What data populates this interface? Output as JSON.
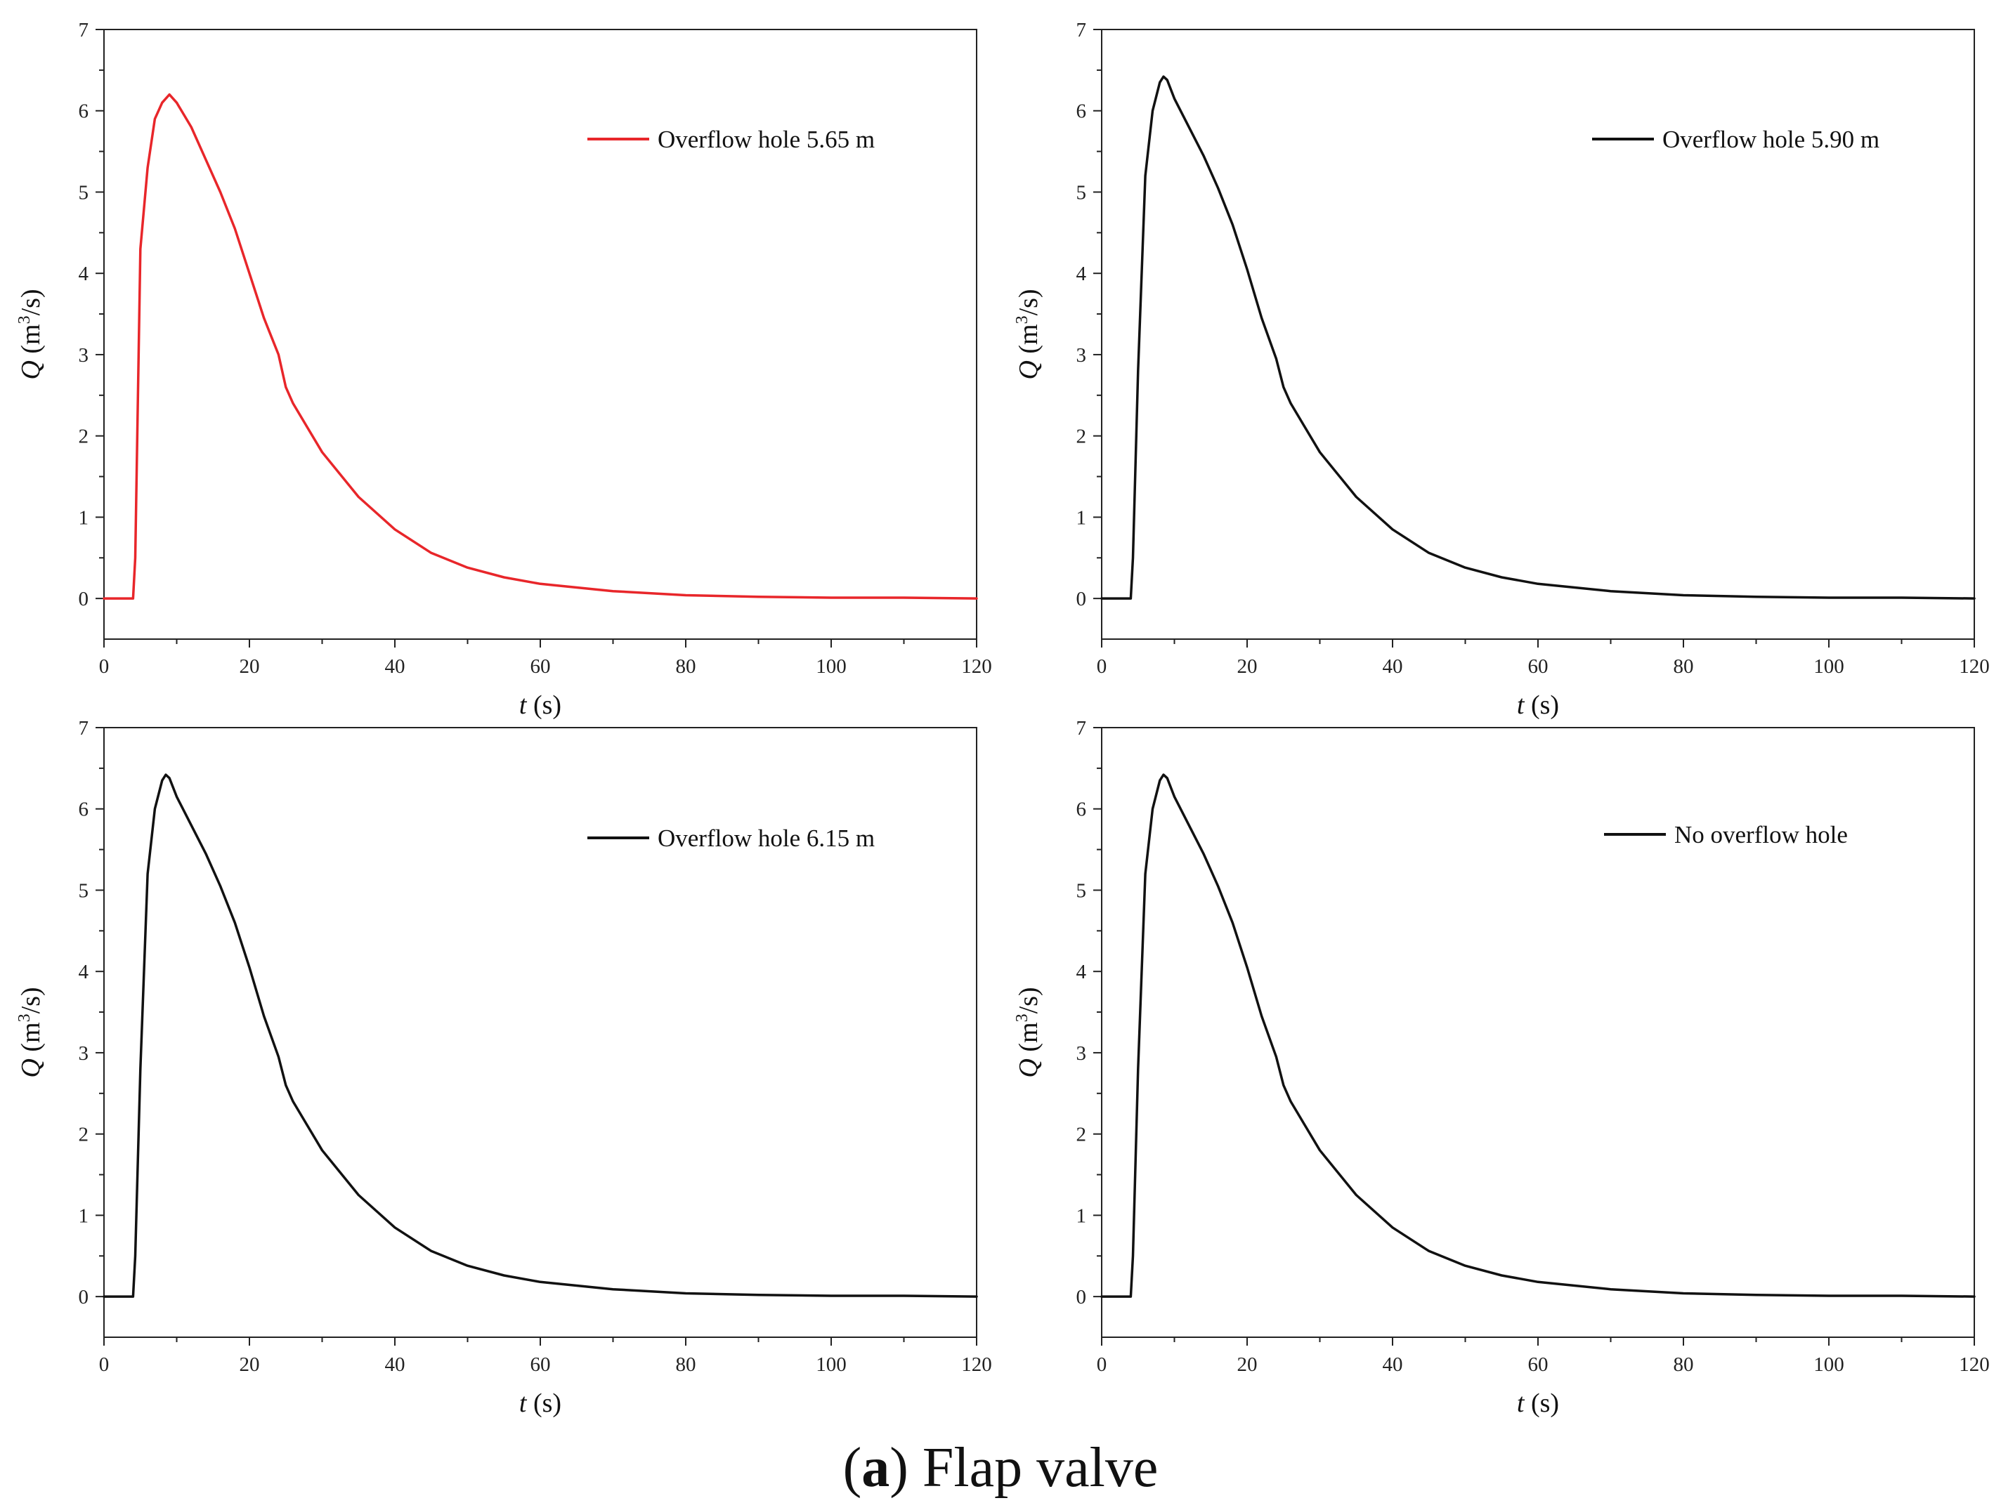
{
  "figure": {
    "caption_letter": "a",
    "caption_text": "Flap valve"
  },
  "chart_data": [
    {
      "type": "line",
      "legend": "Overflow hole 5.65 m",
      "color": "#e8262a",
      "xlabel_var": "t",
      "xlabel_unit": "(s)",
      "ylabel_var": "Q",
      "ylabel_unit_pre": "(m",
      "ylabel_unit_sup": "3",
      "ylabel_unit_post": "/s)",
      "xlim": [
        0,
        120
      ],
      "ylim": [
        -0.5,
        7
      ],
      "xticks": [
        0,
        20,
        40,
        60,
        80,
        100,
        120
      ],
      "yticks": [
        0,
        1,
        2,
        3,
        4,
        5,
        6,
        7
      ],
      "x": [
        0,
        4,
        4.3,
        5,
        6,
        7,
        8,
        9,
        10,
        12,
        14,
        16,
        18,
        20,
        22,
        24,
        25,
        26,
        28,
        30,
        35,
        40,
        45,
        50,
        55,
        60,
        70,
        80,
        90,
        100,
        110,
        120
      ],
      "y": [
        0,
        0,
        0.5,
        4.3,
        5.3,
        5.9,
        6.1,
        6.2,
        6.1,
        5.8,
        5.4,
        5.0,
        4.55,
        4.0,
        3.45,
        3.0,
        2.6,
        2.4,
        2.1,
        1.8,
        1.25,
        0.85,
        0.56,
        0.38,
        0.26,
        0.18,
        0.09,
        0.04,
        0.02,
        0.01,
        0.01,
        0.0
      ]
    },
    {
      "type": "line",
      "legend": "Overflow hole 5.90 m",
      "color": "#111111",
      "xlabel_var": "t",
      "xlabel_unit": "(s)",
      "ylabel_var": "Q",
      "ylabel_unit_pre": "(m",
      "ylabel_unit_sup": "3",
      "ylabel_unit_post": "/s)",
      "xlim": [
        0,
        120
      ],
      "ylim": [
        -0.5,
        7
      ],
      "xticks": [
        0,
        20,
        40,
        60,
        80,
        100,
        120
      ],
      "yticks": [
        0,
        1,
        2,
        3,
        4,
        5,
        6,
        7
      ],
      "x": [
        0,
        4,
        4.3,
        5,
        6,
        7,
        8,
        8.5,
        9,
        10,
        12,
        14,
        16,
        18,
        20,
        22,
        24,
        25,
        26,
        28,
        30,
        35,
        40,
        45,
        50,
        55,
        60,
        70,
        80,
        90,
        100,
        110,
        120
      ],
      "y": [
        0,
        0,
        0.5,
        2.8,
        5.2,
        6.0,
        6.35,
        6.42,
        6.38,
        6.15,
        5.8,
        5.45,
        5.05,
        4.6,
        4.05,
        3.45,
        2.95,
        2.6,
        2.4,
        2.1,
        1.8,
        1.25,
        0.85,
        0.56,
        0.38,
        0.26,
        0.18,
        0.09,
        0.04,
        0.02,
        0.01,
        0.01,
        0.0
      ]
    },
    {
      "type": "line",
      "legend": "Overflow hole 6.15 m",
      "color": "#111111",
      "xlabel_var": "t",
      "xlabel_unit": "(s)",
      "ylabel_var": "Q",
      "ylabel_unit_pre": "(m",
      "ylabel_unit_sup": "3",
      "ylabel_unit_post": "/s)",
      "xlim": [
        0,
        120
      ],
      "ylim": [
        -0.5,
        7
      ],
      "xticks": [
        0,
        20,
        40,
        60,
        80,
        100,
        120
      ],
      "yticks": [
        0,
        1,
        2,
        3,
        4,
        5,
        6,
        7
      ],
      "x": [
        0,
        4,
        4.3,
        5,
        6,
        7,
        8,
        8.5,
        9,
        10,
        12,
        14,
        16,
        18,
        20,
        22,
        24,
        25,
        26,
        28,
        30,
        35,
        40,
        45,
        50,
        55,
        60,
        70,
        80,
        90,
        100,
        110,
        120
      ],
      "y": [
        0,
        0,
        0.5,
        2.8,
        5.2,
        6.0,
        6.35,
        6.42,
        6.38,
        6.15,
        5.8,
        5.45,
        5.05,
        4.6,
        4.05,
        3.45,
        2.95,
        2.6,
        2.4,
        2.1,
        1.8,
        1.25,
        0.85,
        0.56,
        0.38,
        0.26,
        0.18,
        0.09,
        0.04,
        0.02,
        0.01,
        0.01,
        0.0
      ]
    },
    {
      "type": "line",
      "legend": "No overflow hole",
      "color": "#111111",
      "xlabel_var": "t",
      "xlabel_unit": "(s)",
      "ylabel_var": "Q",
      "ylabel_unit_pre": "(m",
      "ylabel_unit_sup": "3",
      "ylabel_unit_post": "/s)",
      "xlim": [
        0,
        120
      ],
      "ylim": [
        -0.5,
        7
      ],
      "xticks": [
        0,
        20,
        40,
        60,
        80,
        100,
        120
      ],
      "yticks": [
        0,
        1,
        2,
        3,
        4,
        5,
        6,
        7
      ],
      "x": [
        0,
        4,
        4.3,
        5,
        6,
        7,
        8,
        8.5,
        9,
        10,
        12,
        14,
        16,
        18,
        20,
        22,
        24,
        25,
        26,
        28,
        30,
        35,
        40,
        45,
        50,
        55,
        60,
        70,
        80,
        90,
        100,
        110,
        120
      ],
      "y": [
        0,
        0,
        0.5,
        2.8,
        5.2,
        6.0,
        6.35,
        6.42,
        6.38,
        6.15,
        5.8,
        5.45,
        5.05,
        4.6,
        4.05,
        3.45,
        2.95,
        2.6,
        2.4,
        2.1,
        1.8,
        1.25,
        0.85,
        0.56,
        0.38,
        0.26,
        0.18,
        0.09,
        0.04,
        0.02,
        0.01,
        0.01,
        0.0
      ]
    }
  ]
}
